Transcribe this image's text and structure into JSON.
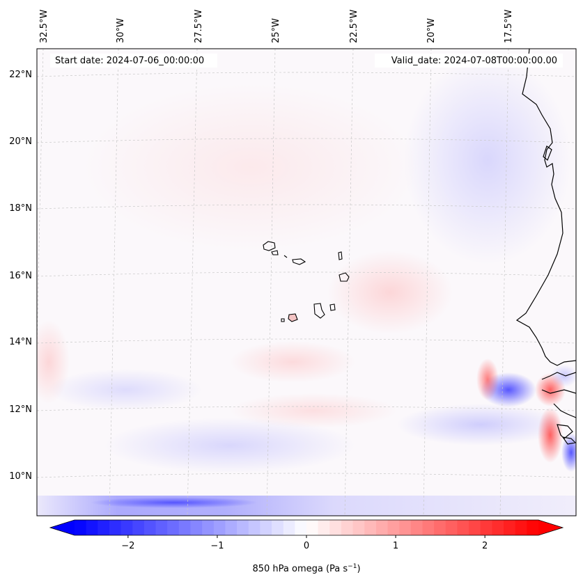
{
  "map": {
    "start_date": "Start date: 2024-07-06_00:00:00",
    "valid_date": "Valid_date: 2024-07-08T00:00:00.00",
    "lon_labels": [
      "32.5°W",
      "30°W",
      "27.5°W",
      "25°W",
      "22.5°W",
      "20°W",
      "17.5°W"
    ],
    "lat_labels": [
      "22°N",
      "20°N",
      "18°N",
      "16°N",
      "14°N",
      "12°N",
      "10°N"
    ],
    "extent": {
      "lon_min": -33.0,
      "lon_max": -15.5,
      "lat_min": 8.9,
      "lat_max": 22.8
    }
  },
  "colorbar": {
    "label_prefix": "850 hPa omega (Pa s",
    "label_exponent": "−1",
    "label_suffix": ")",
    "ticks": [
      "−2",
      "−1",
      "0",
      "1",
      "2"
    ],
    "tick_values": [
      -2,
      -1,
      0,
      1,
      2
    ],
    "vmin": -2.6,
    "vmax": 2.6,
    "cmap": "bwr",
    "color_low": "#0000ff",
    "color_mid": "#ffffff",
    "color_high": "#ff0000"
  },
  "colors": {
    "grid": "#c8c8c8",
    "coast": "#000000"
  }
}
